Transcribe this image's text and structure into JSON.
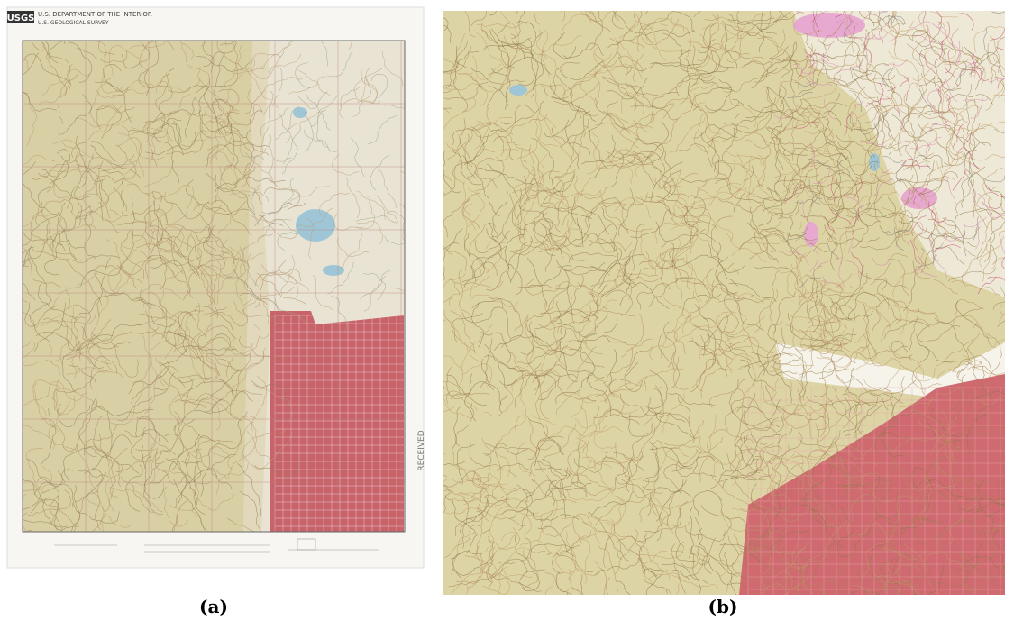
{
  "figure": {
    "panels": [
      {
        "label": "(a)",
        "header": {
          "logo": "USGS",
          "agency": "U.S. DEPARTMENT OF THE INTERIOR",
          "survey": "U.S. GEOLOGICAL SURVEY"
        },
        "stamp": "RECEIVED"
      },
      {
        "label": "(b)"
      }
    ]
  }
}
